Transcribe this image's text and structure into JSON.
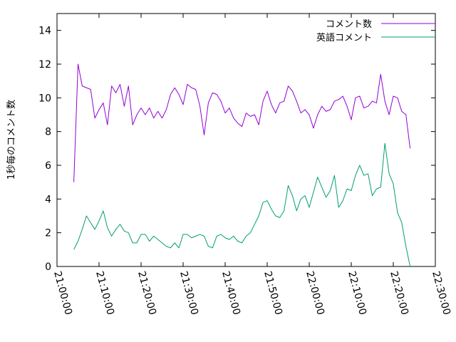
{
  "chart_data": {
    "type": "line",
    "title": "",
    "xlabel": "",
    "ylabel": "1秒毎のコメント数",
    "x_ticks": [
      "21:00:00",
      "21:10:00",
      "21:20:00",
      "21:30:00",
      "21:40:00",
      "21:50:00",
      "22:00:00",
      "22:10:00",
      "22:20:00",
      "22:30:00"
    ],
    "y_ticks": [
      "0",
      "2",
      "4",
      "6",
      "8",
      "10",
      "12",
      "14"
    ],
    "xlim": [
      "21:00:00",
      "22:30:00"
    ],
    "ylim": [
      0,
      15
    ],
    "grid": false,
    "legend_position": "top-right",
    "series": [
      {
        "name": "コメント数",
        "color": "#9400d3",
        "x": [
          "21:04:00",
          "21:05:00",
          "21:06:00",
          "21:07:00",
          "21:08:00",
          "21:09:00",
          "21:10:00",
          "21:11:00",
          "21:12:00",
          "21:13:00",
          "21:14:00",
          "21:15:00",
          "21:16:00",
          "21:17:00",
          "21:18:00",
          "21:19:00",
          "21:20:00",
          "21:21:00",
          "21:22:00",
          "21:23:00",
          "21:24:00",
          "21:25:00",
          "21:26:00",
          "21:27:00",
          "21:28:00",
          "21:29:00",
          "21:30:00",
          "21:31:00",
          "21:32:00",
          "21:33:00",
          "21:34:00",
          "21:35:00",
          "21:36:00",
          "21:37:00",
          "21:38:00",
          "21:39:00",
          "21:40:00",
          "21:41:00",
          "21:42:00",
          "21:43:00",
          "21:44:00",
          "21:45:00",
          "21:46:00",
          "21:47:00",
          "21:48:00",
          "21:49:00",
          "21:50:00",
          "21:51:00",
          "21:52:00",
          "21:53:00",
          "21:54:00",
          "21:55:00",
          "21:56:00",
          "21:57:00",
          "21:58:00",
          "21:59:00",
          "22:00:00",
          "22:01:00",
          "22:02:00",
          "22:03:00",
          "22:04:00",
          "22:05:00",
          "22:06:00",
          "22:07:00",
          "22:08:00",
          "22:09:00",
          "22:10:00",
          "22:11:00",
          "22:12:00",
          "22:13:00",
          "22:14:00",
          "22:15:00",
          "22:16:00",
          "22:17:00",
          "22:18:00",
          "22:19:00",
          "22:20:00",
          "22:21:00",
          "22:22:00",
          "22:23:00",
          "22:24:00"
        ],
        "y": [
          5.0,
          12.0,
          10.7,
          10.6,
          10.5,
          8.8,
          9.3,
          9.7,
          8.4,
          10.7,
          10.3,
          10.8,
          9.5,
          10.7,
          8.4,
          9.0,
          9.4,
          9.0,
          9.4,
          8.8,
          9.2,
          8.8,
          9.3,
          10.2,
          10.6,
          10.2,
          9.6,
          10.8,
          10.6,
          10.5,
          9.5,
          7.8,
          9.7,
          10.3,
          10.2,
          9.8,
          9.1,
          9.4,
          8.8,
          8.5,
          8.3,
          9.1,
          8.9,
          9.0,
          8.4,
          9.8,
          10.4,
          9.6,
          9.1,
          9.7,
          9.8,
          10.7,
          10.4,
          9.8,
          9.1,
          9.3,
          9.0,
          8.2,
          9.0,
          9.5,
          9.2,
          9.3,
          9.8,
          9.9,
          10.1,
          9.5,
          8.7,
          10.0,
          10.1,
          9.4,
          9.5,
          9.8,
          9.7,
          11.4,
          9.8,
          9.0,
          10.1,
          10.0,
          9.2,
          9.0,
          7.0
        ]
      },
      {
        "name": "英語コメント",
        "color": "#009e73",
        "x": [
          "21:04:00",
          "21:05:00",
          "21:06:00",
          "21:07:00",
          "21:08:00",
          "21:09:00",
          "21:10:00",
          "21:11:00",
          "21:12:00",
          "21:13:00",
          "21:14:00",
          "21:15:00",
          "21:16:00",
          "21:17:00",
          "21:18:00",
          "21:19:00",
          "21:20:00",
          "21:21:00",
          "21:22:00",
          "21:23:00",
          "21:24:00",
          "21:25:00",
          "21:26:00",
          "21:27:00",
          "21:28:00",
          "21:29:00",
          "21:30:00",
          "21:31:00",
          "21:32:00",
          "21:33:00",
          "21:34:00",
          "21:35:00",
          "21:36:00",
          "21:37:00",
          "21:38:00",
          "21:39:00",
          "21:40:00",
          "21:41:00",
          "21:42:00",
          "21:43:00",
          "21:44:00",
          "21:45:00",
          "21:46:00",
          "21:47:00",
          "21:48:00",
          "21:49:00",
          "21:50:00",
          "21:51:00",
          "21:52:00",
          "21:53:00",
          "21:54:00",
          "21:55:00",
          "21:56:00",
          "21:57:00",
          "21:58:00",
          "21:59:00",
          "22:00:00",
          "22:01:00",
          "22:02:00",
          "22:03:00",
          "22:04:00",
          "22:05:00",
          "22:06:00",
          "22:07:00",
          "22:08:00",
          "22:09:00",
          "22:10:00",
          "22:11:00",
          "22:12:00",
          "22:13:00",
          "22:14:00",
          "22:15:00",
          "22:16:00",
          "22:17:00",
          "22:18:00",
          "22:19:00",
          "22:20:00",
          "22:21:00",
          "22:22:00",
          "22:23:00",
          "22:24:00"
        ],
        "y": [
          1.0,
          1.5,
          2.2,
          3.0,
          2.6,
          2.2,
          2.7,
          3.3,
          2.3,
          1.8,
          2.2,
          2.5,
          2.1,
          2.0,
          1.4,
          1.4,
          1.9,
          1.9,
          1.5,
          1.8,
          1.6,
          1.4,
          1.2,
          1.1,
          1.4,
          1.1,
          1.9,
          1.9,
          1.7,
          1.8,
          1.9,
          1.8,
          1.2,
          1.1,
          1.8,
          1.9,
          1.7,
          1.6,
          1.8,
          1.5,
          1.4,
          1.8,
          2.0,
          2.5,
          3.0,
          3.8,
          3.9,
          3.4,
          3.0,
          2.9,
          3.3,
          4.8,
          4.2,
          3.3,
          4.0,
          4.2,
          3.5,
          4.4,
          5.3,
          4.7,
          4.1,
          4.5,
          5.4,
          3.5,
          3.9,
          4.6,
          4.5,
          5.4,
          6.0,
          5.4,
          5.5,
          4.2,
          4.6,
          4.7,
          7.3,
          5.5,
          4.9,
          3.2,
          2.6,
          1.2,
          0.0
        ]
      }
    ]
  }
}
